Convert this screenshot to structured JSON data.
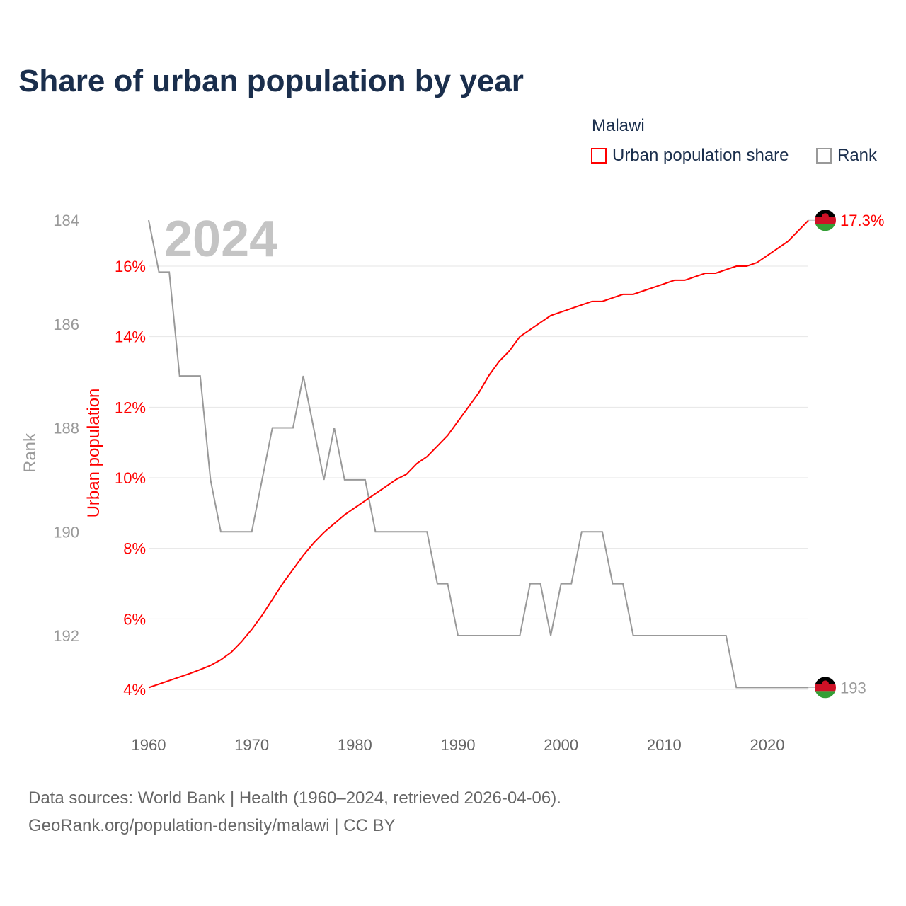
{
  "title": "Share of urban population by year",
  "legend": {
    "country": "Malawi",
    "items": [
      {
        "label": "Urban population share",
        "color": "#ff0000"
      },
      {
        "label": "Rank",
        "color": "#999999"
      }
    ]
  },
  "source": {
    "line1": "Data sources: World Bank | Health (1960–2024, retrieved 2026-04-06).",
    "line2": "GeoRank.org/population-density/malawi | CC BY"
  },
  "chart_data": {
    "type": "line",
    "year_label": "2024",
    "x": [
      1960,
      1961,
      1962,
      1963,
      1964,
      1965,
      1966,
      1967,
      1968,
      1969,
      1970,
      1971,
      1972,
      1973,
      1974,
      1975,
      1976,
      1977,
      1978,
      1979,
      1980,
      1981,
      1982,
      1983,
      1984,
      1985,
      1986,
      1987,
      1988,
      1989,
      1990,
      1991,
      1992,
      1993,
      1994,
      1995,
      1996,
      1997,
      1998,
      1999,
      2000,
      2001,
      2002,
      2003,
      2004,
      2005,
      2006,
      2007,
      2008,
      2009,
      2010,
      2011,
      2012,
      2013,
      2014,
      2015,
      2016,
      2017,
      2018,
      2019,
      2020,
      2021,
      2022,
      2023,
      2024
    ],
    "series": [
      {
        "name": "Urban population share",
        "axis": "left",
        "unit": "%",
        "color": "#ff0000",
        "values": [
          4.05,
          4.15,
          4.25,
          4.35,
          4.45,
          4.56,
          4.68,
          4.84,
          5.05,
          5.35,
          5.7,
          6.1,
          6.55,
          7.0,
          7.4,
          7.8,
          8.15,
          8.45,
          8.7,
          8.95,
          9.15,
          9.35,
          9.55,
          9.75,
          9.95,
          10.1,
          10.4,
          10.6,
          10.9,
          11.2,
          11.6,
          12.0,
          12.4,
          12.9,
          13.3,
          13.6,
          14.0,
          14.2,
          14.4,
          14.6,
          14.7,
          14.8,
          14.9,
          15.0,
          15.0,
          15.1,
          15.2,
          15.2,
          15.3,
          15.4,
          15.5,
          15.6,
          15.6,
          15.7,
          15.8,
          15.8,
          15.9,
          16.0,
          16.0,
          16.1,
          16.3,
          16.5,
          16.7,
          17.0,
          17.3
        ],
        "end_label": "17.3%"
      },
      {
        "name": "Rank",
        "axis": "far-left",
        "color": "#999999",
        "values": [
          184,
          185,
          185,
          187,
          187,
          187,
          189,
          190,
          190,
          190,
          190,
          189,
          188,
          188,
          188,
          187,
          188,
          189,
          188,
          189,
          189,
          189,
          190,
          190,
          190,
          190,
          190,
          190,
          191,
          191,
          192,
          192,
          192,
          192,
          192,
          192,
          192,
          191,
          191,
          192,
          191,
          191,
          190,
          190,
          190,
          191,
          191,
          192,
          192,
          192,
          192,
          192,
          192,
          192,
          192,
          192,
          192,
          193,
          193,
          193,
          193,
          193,
          193,
          193,
          193
        ],
        "end_label": "193"
      }
    ],
    "xlim": [
      1960,
      2024
    ],
    "xticks": [
      "1960",
      "1970",
      "1980",
      "1990",
      "2000",
      "2010",
      "2020"
    ],
    "ylabel": "Urban population",
    "ylim": [
      4,
      17.3
    ],
    "yticks": [
      "4%",
      "6%",
      "8%",
      "10%",
      "12%",
      "14%",
      "16%"
    ],
    "y2label": "Rank",
    "y2lim": [
      184,
      193
    ],
    "y2ticks": [
      "184",
      "186",
      "188",
      "190",
      "192"
    ],
    "grid": true,
    "legend_position": "top-right"
  }
}
